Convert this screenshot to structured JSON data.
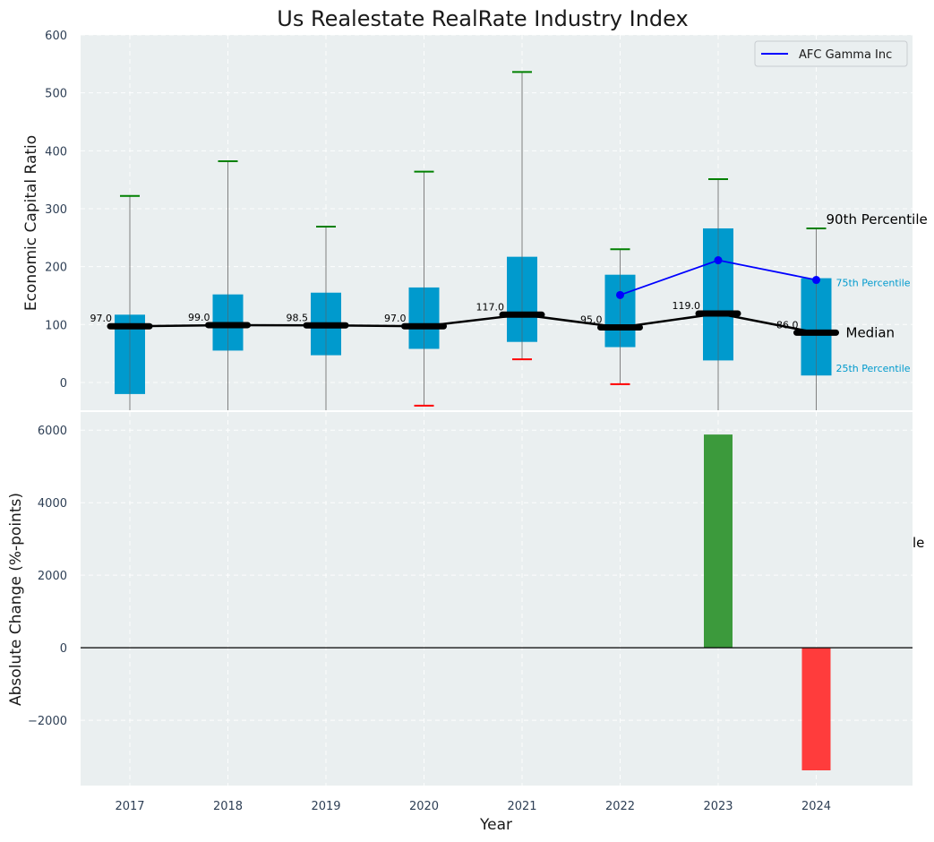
{
  "chart_data": {
    "type": "box",
    "title": "Us Realestate RealRate Industry Index",
    "xlabel": "Year",
    "colors": {
      "box": "#009acd",
      "median": "#000000",
      "company": "#0000ff",
      "p90_cap": "#008000",
      "p10_cap": "#ff0000",
      "positive_bar": "#3c9a3c",
      "negative_bar": "#ff3c3c",
      "panel_bg": "#eaeff0"
    },
    "categories": [
      "2017",
      "2018",
      "2019",
      "2020",
      "2021",
      "2022",
      "2023",
      "2024"
    ],
    "top_panel": {
      "ylabel": "Economic Capital Ratio",
      "ylim": [
        -48,
        600
      ],
      "yticks": [
        0,
        100,
        200,
        300,
        400,
        500,
        600
      ],
      "grid": true,
      "legend_position": "top-right",
      "legend": [
        {
          "name": "AFC Gamma Inc",
          "color": "#0000ff"
        }
      ],
      "p10": [
        null,
        null,
        null,
        -40,
        40,
        -3,
        null,
        null
      ],
      "p25": [
        -20,
        55,
        47,
        58,
        70,
        61,
        38,
        12
      ],
      "median": [
        97.0,
        99.0,
        98.5,
        97.0,
        117.0,
        95.0,
        119.0,
        86.0
      ],
      "median_labels": [
        "97.0",
        "99.0",
        "98.5",
        "97.0",
        "117.0",
        "95.0",
        "119.0",
        "86.0"
      ],
      "p75": [
        117,
        152,
        155,
        164,
        217,
        186,
        266,
        180
      ],
      "p90": [
        322,
        382,
        269,
        364,
        536,
        230,
        351,
        266
      ],
      "company_series": {
        "name": "AFC Gamma Inc",
        "x": [
          "2022",
          "2023",
          "2024"
        ],
        "values": [
          151,
          211,
          177
        ]
      },
      "annotations": {
        "p90": "90th Percentile",
        "p75": "75th Percentile",
        "median": "Median",
        "p25": "25th Percentile",
        "clipped": "le"
      }
    },
    "bottom_panel": {
      "ylabel": "Absolute Change (%-points)",
      "ylim": [
        -3800,
        6500
      ],
      "yticks": [
        -2000,
        0,
        2000,
        4000,
        6000
      ],
      "grid": true,
      "values": [
        null,
        null,
        null,
        null,
        null,
        null,
        5880,
        -3380
      ]
    }
  }
}
